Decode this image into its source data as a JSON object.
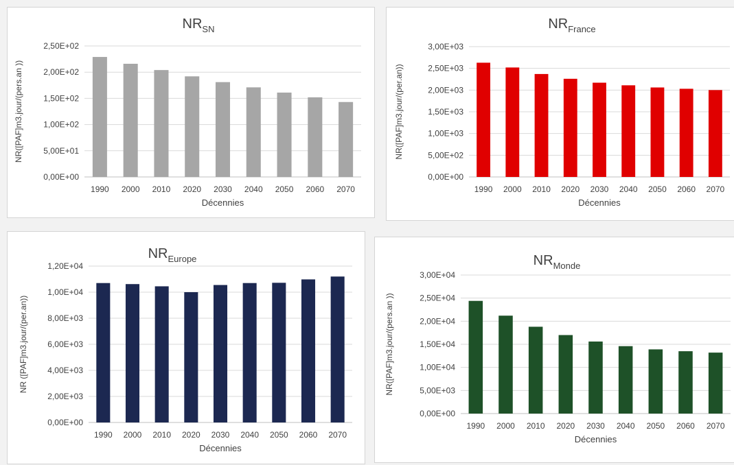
{
  "chart_data": [
    {
      "type": "bar",
      "title_main": "NR",
      "title_sub": "SN",
      "categories": [
        "1990",
        "2000",
        "2010",
        "2020",
        "2030",
        "2040",
        "2050",
        "2060",
        "2070"
      ],
      "values": [
        229,
        216,
        204,
        192,
        181,
        171,
        161,
        152,
        143
      ],
      "ylim": [
        0,
        250
      ],
      "yticks": [
        0,
        50,
        100,
        150,
        200,
        250
      ],
      "ytick_labels": [
        "0,00E+00",
        "5,00E+01",
        "1,00E+02",
        "1,50E+02",
        "2,00E+02",
        "2,50E+02"
      ],
      "xlabel": "Décennies",
      "ylabel": "NR([PAF]m3.jour/(pers.an ))",
      "color": "#a6a6a6",
      "grid": true
    },
    {
      "type": "bar",
      "title_main": "NR",
      "title_sub": "France",
      "categories": [
        "1990",
        "2000",
        "2010",
        "2020",
        "2030",
        "2040",
        "2050",
        "2060",
        "2070"
      ],
      "values": [
        2630,
        2520,
        2370,
        2260,
        2170,
        2110,
        2060,
        2030,
        2000
      ],
      "ylim": [
        0,
        3000
      ],
      "yticks": [
        0,
        500,
        1000,
        1500,
        2000,
        2500,
        3000
      ],
      "ytick_labels": [
        "0,00E+00",
        "5,00E+02",
        "1,00E+03",
        "1,50E+03",
        "2,00E+03",
        "2,50E+03",
        "3,00E+03"
      ],
      "xlabel": "Décennies",
      "ylabel": "NR([PAF]m3.jour/(per.an))",
      "color": "#e00000",
      "grid": true
    },
    {
      "type": "bar",
      "title_main": "NR",
      "title_sub": "Europe",
      "categories": [
        "1990",
        "2000",
        "2010",
        "2020",
        "2030",
        "2040",
        "2050",
        "2060",
        "2070"
      ],
      "values": [
        10700,
        10620,
        10450,
        10000,
        10550,
        10700,
        10720,
        10980,
        11200
      ],
      "ylim": [
        0,
        12000
      ],
      "yticks": [
        0,
        2000,
        4000,
        6000,
        8000,
        10000,
        12000
      ],
      "ytick_labels": [
        "0,00E+00",
        "2,00E+03",
        "4,00E+03",
        "6,00E+03",
        "8,00E+03",
        "1,00E+04",
        "1,20E+04"
      ],
      "xlabel": "Décennies",
      "ylabel": "NR ([PAF]m3.jour/(per.an))",
      "color": "#1c2851",
      "grid": true
    },
    {
      "type": "bar",
      "title_main": "NR",
      "title_sub": "Monde",
      "categories": [
        "1990",
        "2000",
        "2010",
        "2020",
        "2030",
        "2040",
        "2050",
        "2060",
        "2070"
      ],
      "values": [
        24400,
        21200,
        18800,
        17000,
        15600,
        14600,
        13900,
        13500,
        13200
      ],
      "ylim": [
        0,
        30000
      ],
      "yticks": [
        0,
        5000,
        10000,
        15000,
        20000,
        25000,
        30000
      ],
      "ytick_labels": [
        "0,00E+00",
        "5,00E+03",
        "1,00E+04",
        "1,50E+04",
        "2,00E+04",
        "2,50E+04",
        "3,00E+04"
      ],
      "xlabel": "Décennies",
      "ylabel": "NR([PAF]m3.jour/(pers.an ))",
      "color": "#1e5128",
      "grid": true
    }
  ]
}
